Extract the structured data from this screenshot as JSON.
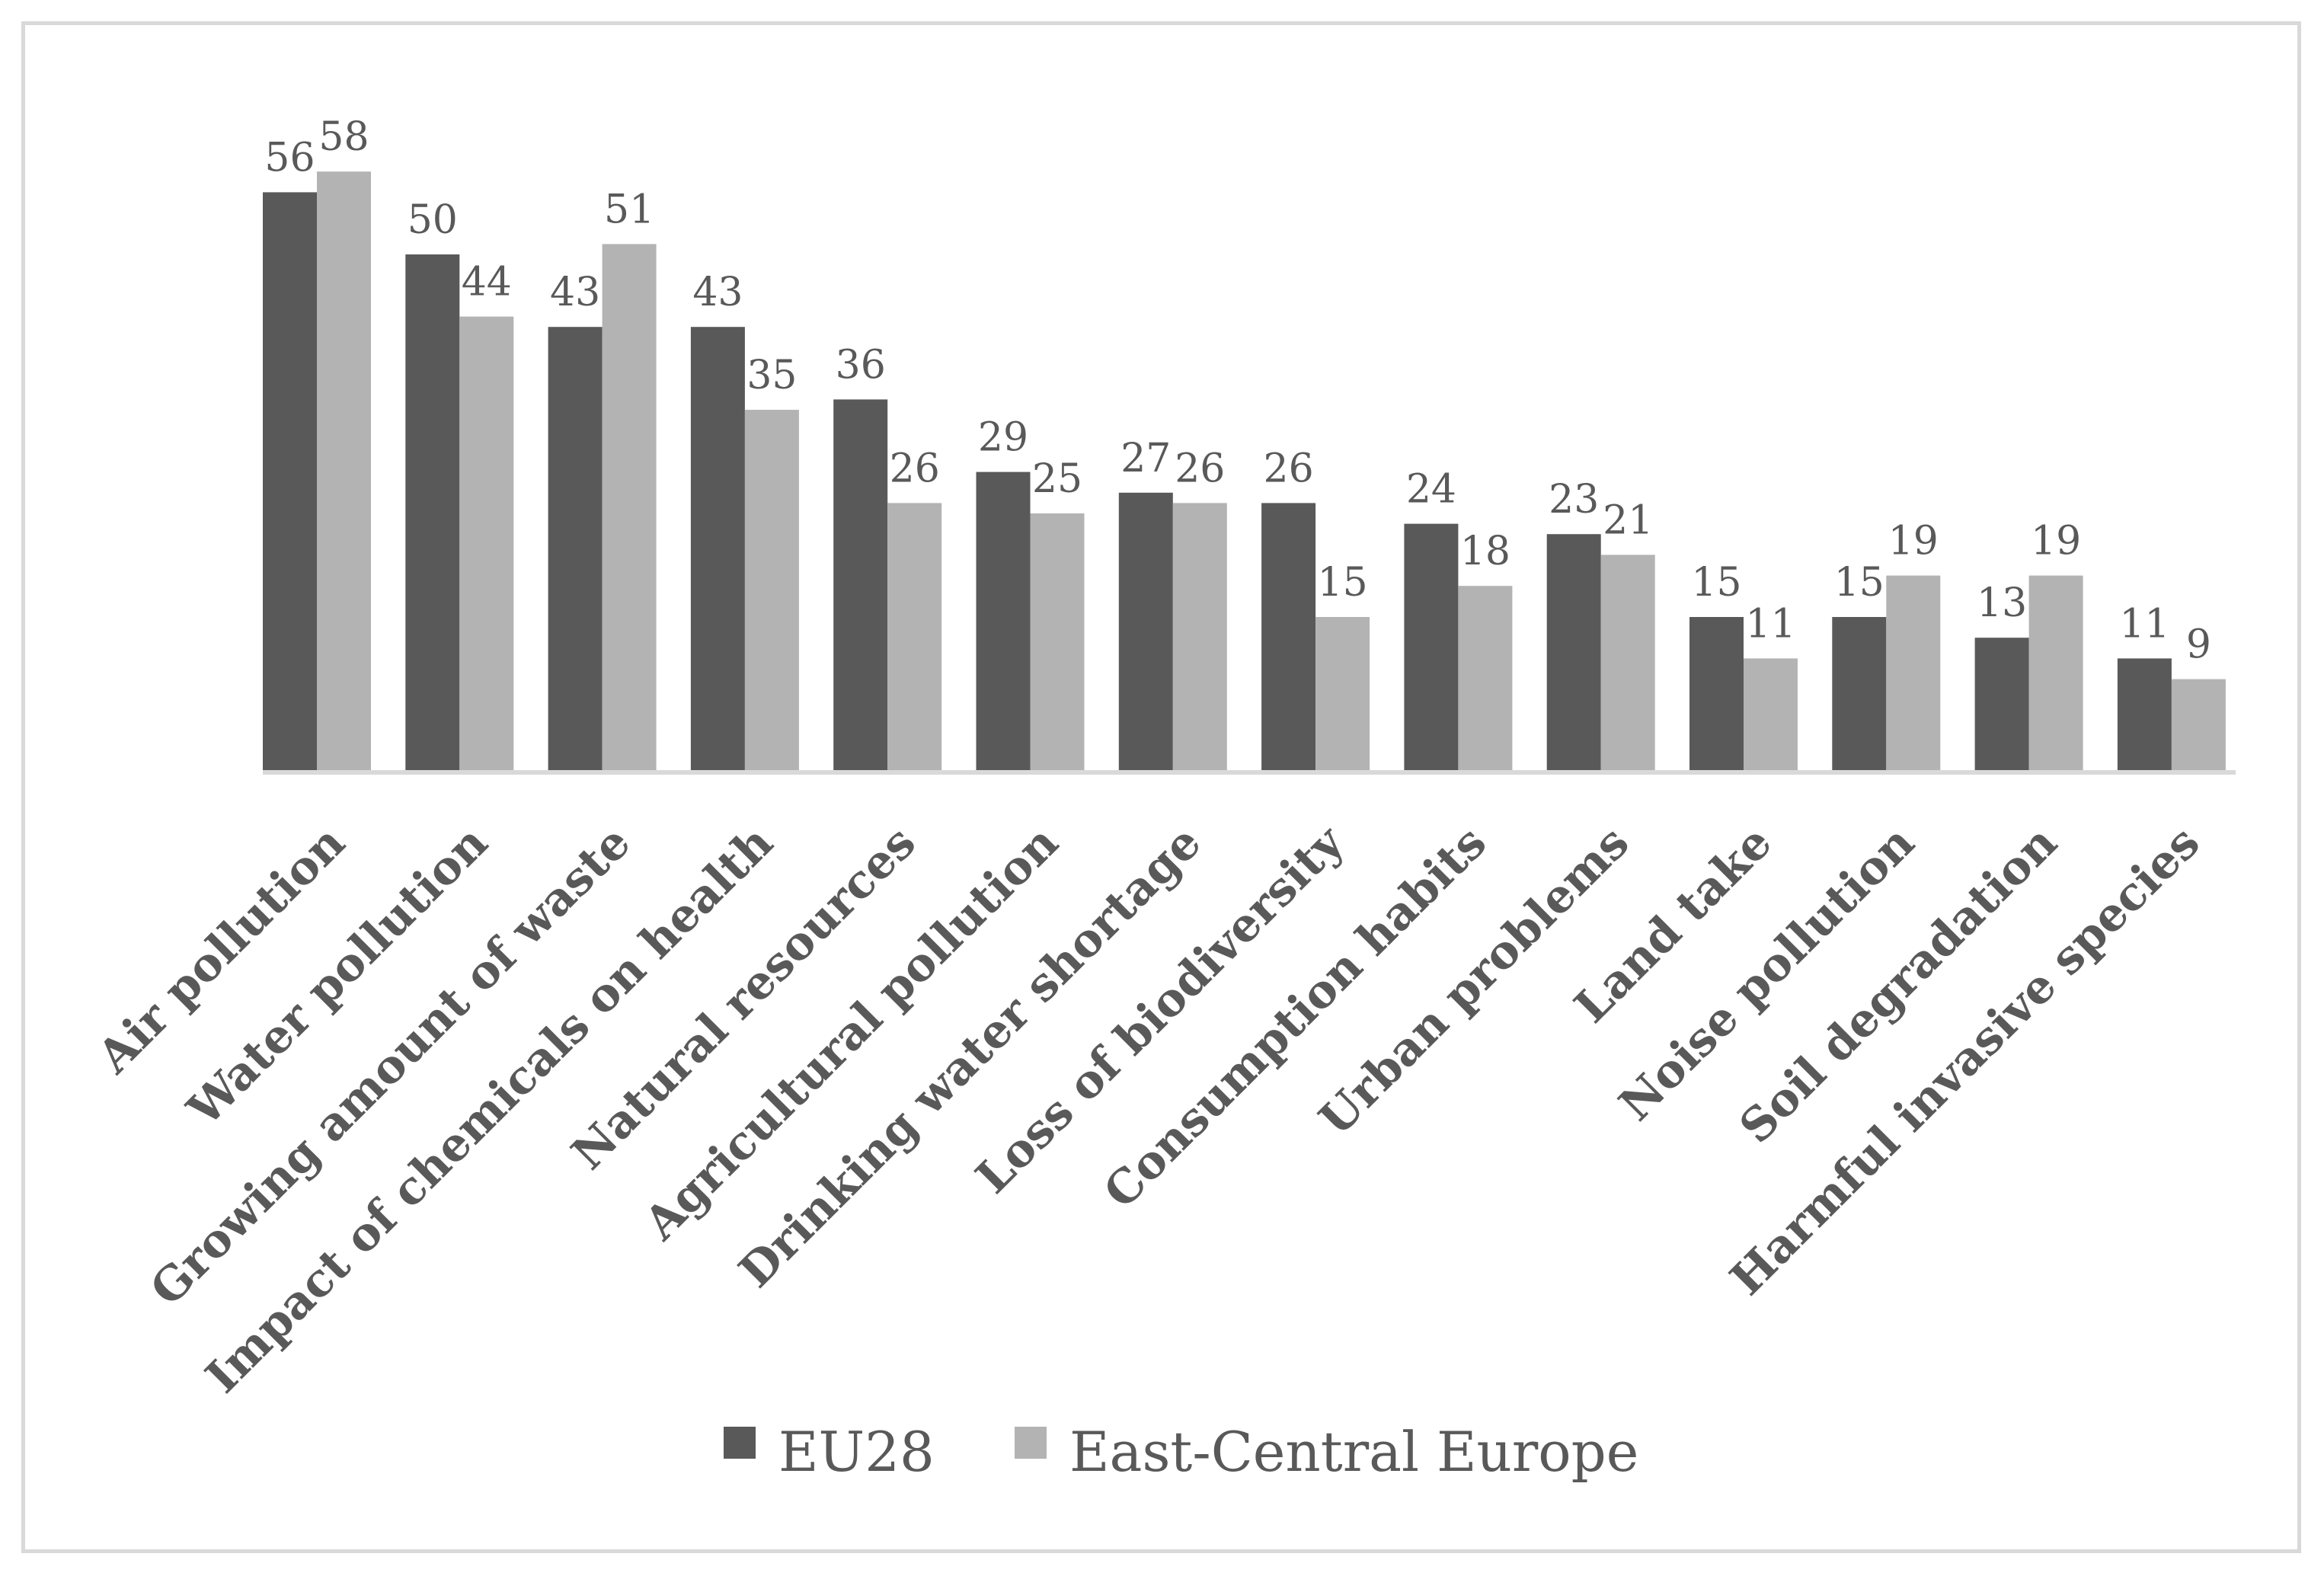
{
  "chart_data": {
    "type": "bar",
    "title": "",
    "xlabel": "",
    "ylabel": "",
    "ylim": [
      0,
      60
    ],
    "grid": false,
    "legend_position": "bottom",
    "categories": [
      "Air pollution",
      "Water pollution",
      "Growing amount of waste",
      "Impact of chemicals on health",
      "Natural resources",
      "Agricultural pollution",
      "Drinking water shortage",
      "Loss of biodiversity",
      "Consumption habits",
      "Urban problems",
      "Land take",
      "Noise pollution",
      "Soil degradation",
      "Harmful invasive species"
    ],
    "series": [
      {
        "name": "EU28",
        "color": "#595959",
        "values": [
          56,
          50,
          43,
          43,
          36,
          29,
          27,
          26,
          24,
          23,
          15,
          15,
          13,
          11
        ]
      },
      {
        "name": "East-Central Europe",
        "color": "#b3b3b3",
        "values": [
          58,
          44,
          51,
          35,
          26,
          25,
          26,
          15,
          18,
          21,
          11,
          19,
          19,
          9
        ]
      }
    ]
  }
}
